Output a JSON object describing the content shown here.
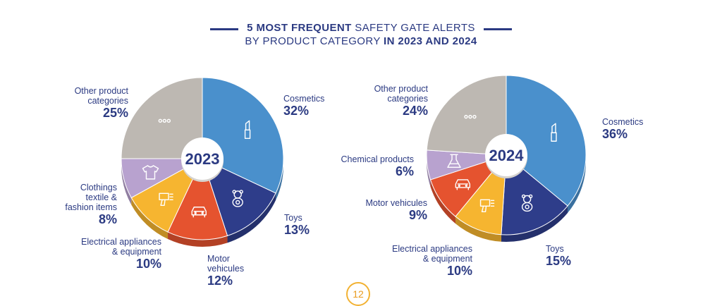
{
  "title": {
    "line1_bold": "5 MOST FREQUENT",
    "line1_rest": " SAFETY GATE ALERTS",
    "line2_plain": "BY PRODUCT CATEGORY ",
    "line2_bold": "IN 2023 AND 2024"
  },
  "page_number": "12",
  "colors": {
    "cosmetics": "#4a90cc",
    "toys": "#2e3d8a",
    "motor": "#e5532f",
    "electrical": "#f6b530",
    "clothing": "#b8a2cf",
    "chemical": "#b8a2cf",
    "other": "#bdb8b2"
  },
  "chart_data": [
    {
      "type": "pie",
      "year_label": "2023",
      "slices": [
        {
          "label": "Cosmetics",
          "value": 32,
          "pct_text": "32%",
          "color": "#4a90cc",
          "icon": "lipstick-icon"
        },
        {
          "label": "Toys",
          "value": 13,
          "pct_text": "13%",
          "color": "#2e3d8a",
          "icon": "teddy-bear-icon"
        },
        {
          "label": "Motor vehicules",
          "value": 12,
          "pct_text": "12%",
          "color": "#e5532f",
          "icon": "car-icon"
        },
        {
          "label": "Electrical appliances & equipment",
          "value": 10,
          "pct_text": "10%",
          "color": "#f6b530",
          "icon": "hair-dryer-icon"
        },
        {
          "label": "Clothings textile & fashion items",
          "value": 8,
          "pct_text": "8%",
          "color": "#b8a2cf",
          "icon": "shirt-icon"
        },
        {
          "label": "Other product categories",
          "value": 25,
          "pct_text": "25%",
          "color": "#bdb8b2",
          "icon": "ellipsis-icon"
        }
      ]
    },
    {
      "type": "pie",
      "year_label": "2024",
      "slices": [
        {
          "label": "Cosmetics",
          "value": 36,
          "pct_text": "36%",
          "color": "#4a90cc",
          "icon": "lipstick-icon"
        },
        {
          "label": "Toys",
          "value": 15,
          "pct_text": "15%",
          "color": "#2e3d8a",
          "icon": "teddy-bear-icon"
        },
        {
          "label": "Electrical appliances & equipment",
          "value": 10,
          "pct_text": "10%",
          "color": "#f6b530",
          "icon": "hair-dryer-icon"
        },
        {
          "label": "Motor vehicules",
          "value": 9,
          "pct_text": "9%",
          "color": "#e5532f",
          "icon": "car-icon"
        },
        {
          "label": "Chemical products",
          "value": 6,
          "pct_text": "6%",
          "color": "#b8a2cf",
          "icon": "flask-icon"
        },
        {
          "label": "Other product categories",
          "value": 24,
          "pct_text": "24%",
          "color": "#bdb8b2",
          "icon": "ellipsis-icon"
        }
      ]
    }
  ],
  "labels_2023": {
    "cosmetics": {
      "name": "Cosmetics",
      "pct": "32%"
    },
    "toys": {
      "name": "Toys",
      "pct": "13%"
    },
    "motor": {
      "name1": "Motor",
      "name2": "vehicules",
      "pct": "12%"
    },
    "electrical": {
      "name1": "Electrical appliances",
      "name2": "& equipment",
      "pct": "10%"
    },
    "clothing": {
      "name1": "Clothings",
      "name2": "textile &",
      "name3": "fashion items",
      "pct": "8%"
    },
    "other": {
      "name1": "Other product",
      "name2": "categories",
      "pct": "25%"
    }
  },
  "labels_2024": {
    "cosmetics": {
      "name": "Cosmetics",
      "pct": "36%"
    },
    "toys": {
      "name": "Toys",
      "pct": "15%"
    },
    "electrical": {
      "name1": "Electrical appliances",
      "name2": "& equipment",
      "pct": "10%"
    },
    "motor": {
      "name": "Motor vehicules",
      "pct": "9%"
    },
    "chemical": {
      "name": "Chemical products",
      "pct": "6%"
    },
    "other": {
      "name1": "Other product",
      "name2": "categories",
      "pct": "24%"
    }
  }
}
